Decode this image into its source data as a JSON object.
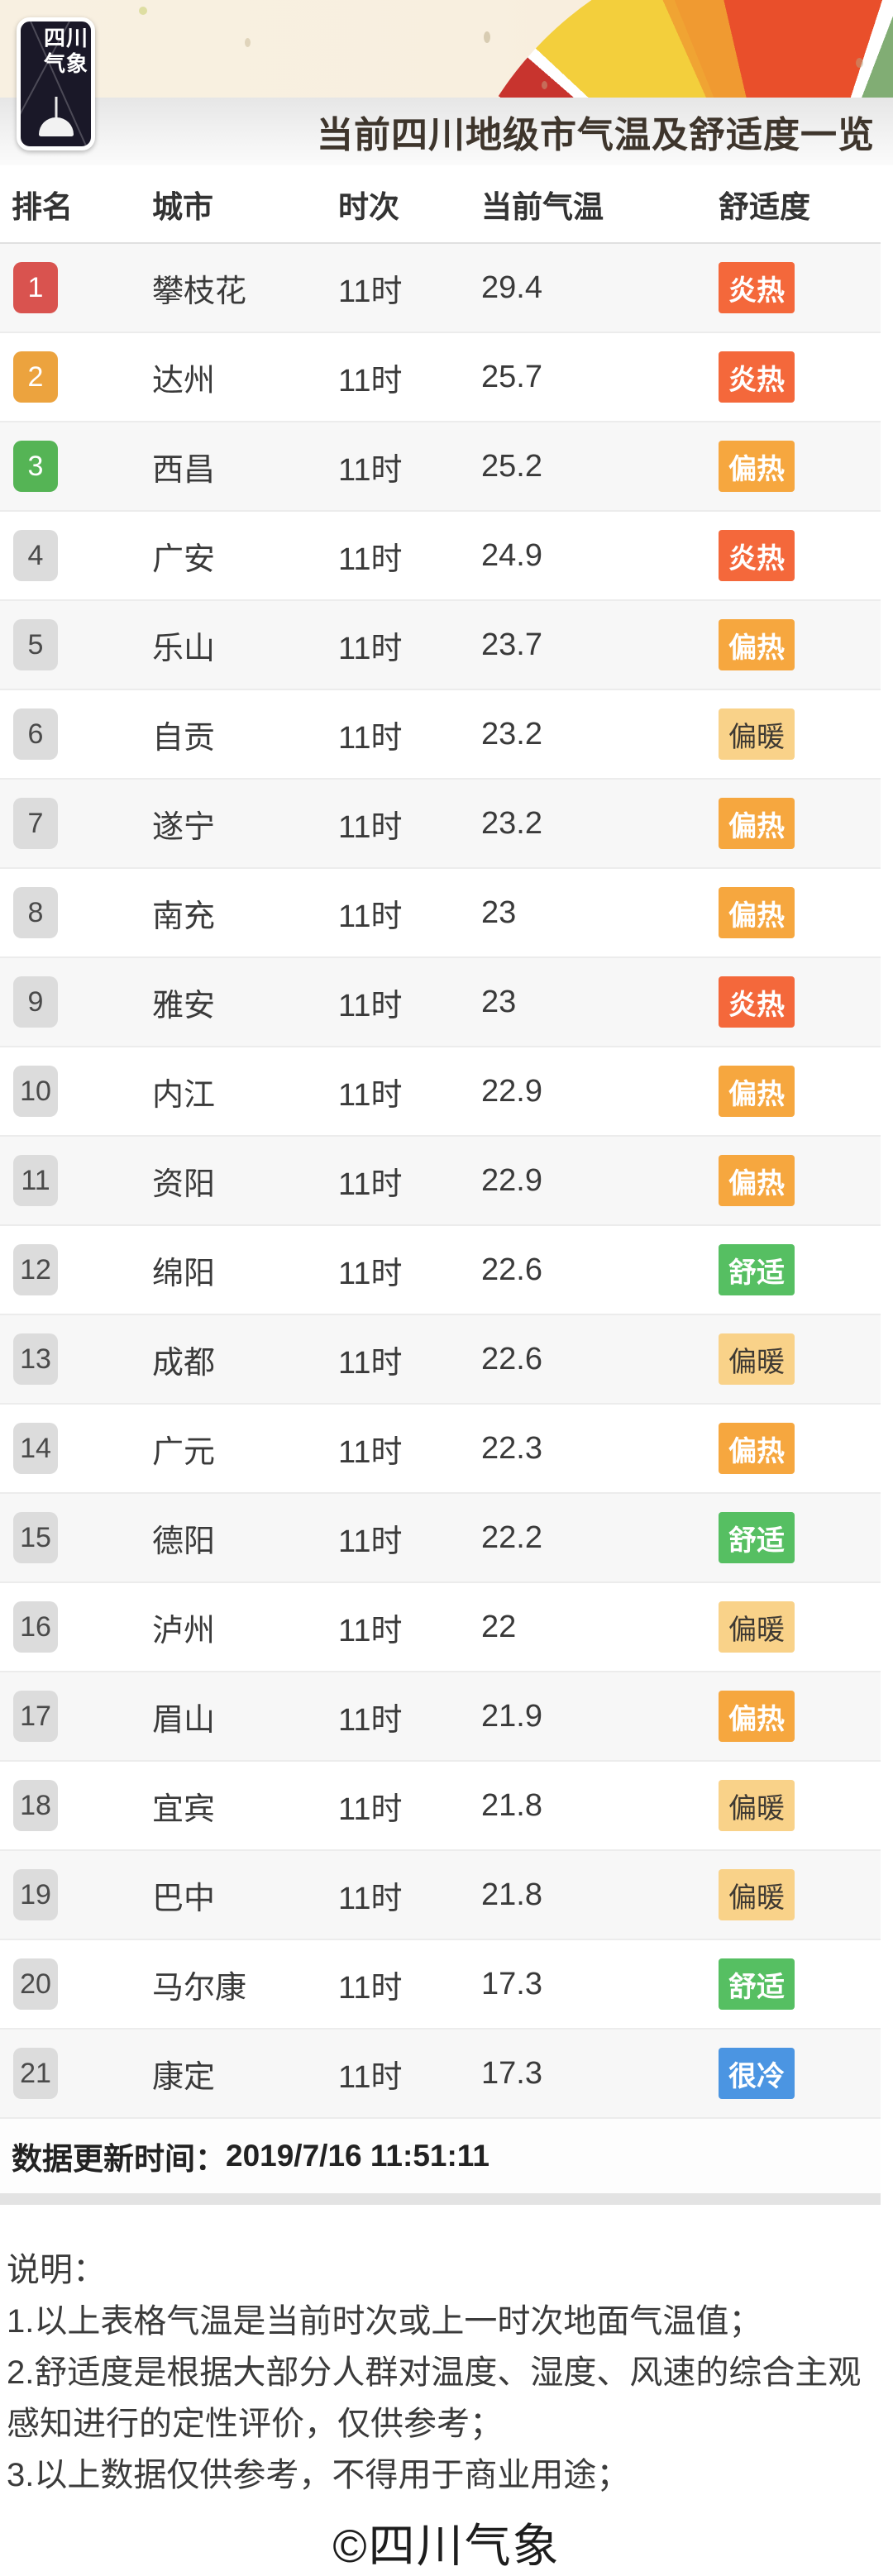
{
  "header": {
    "logo_line1": "四川",
    "logo_line2": "气象",
    "title": "当前四川地级市气温及舒适度一览"
  },
  "table": {
    "columns": [
      "排名",
      "城市",
      "时次",
      "当前气温",
      "舒适度"
    ],
    "rows": [
      {
        "rank": "1",
        "city": "攀枝花",
        "time": "11时",
        "temperature": "29.4",
        "comfort": "炎热",
        "comfort_level": "hot"
      },
      {
        "rank": "2",
        "city": "达州",
        "time": "11时",
        "temperature": "25.7",
        "comfort": "炎热",
        "comfort_level": "hot"
      },
      {
        "rank": "3",
        "city": "西昌",
        "time": "11时",
        "temperature": "25.2",
        "comfort": "偏热",
        "comfort_level": "warm_hot"
      },
      {
        "rank": "4",
        "city": "广安",
        "time": "11时",
        "temperature": "24.9",
        "comfort": "炎热",
        "comfort_level": "hot"
      },
      {
        "rank": "5",
        "city": "乐山",
        "time": "11时",
        "temperature": "23.7",
        "comfort": "偏热",
        "comfort_level": "warm_hot"
      },
      {
        "rank": "6",
        "city": "自贡",
        "time": "11时",
        "temperature": "23.2",
        "comfort": "偏暖",
        "comfort_level": "warm"
      },
      {
        "rank": "7",
        "city": "遂宁",
        "time": "11时",
        "temperature": "23.2",
        "comfort": "偏热",
        "comfort_level": "warm_hot"
      },
      {
        "rank": "8",
        "city": "南充",
        "time": "11时",
        "temperature": "23",
        "comfort": "偏热",
        "comfort_level": "warm_hot"
      },
      {
        "rank": "9",
        "city": "雅安",
        "time": "11时",
        "temperature": "23",
        "comfort": "炎热",
        "comfort_level": "hot"
      },
      {
        "rank": "10",
        "city": "内江",
        "time": "11时",
        "temperature": "22.9",
        "comfort": "偏热",
        "comfort_level": "warm_hot"
      },
      {
        "rank": "11",
        "city": "资阳",
        "time": "11时",
        "temperature": "22.9",
        "comfort": "偏热",
        "comfort_level": "warm_hot"
      },
      {
        "rank": "12",
        "city": "绵阳",
        "time": "11时",
        "temperature": "22.6",
        "comfort": "舒适",
        "comfort_level": "comfortable"
      },
      {
        "rank": "13",
        "city": "成都",
        "time": "11时",
        "temperature": "22.6",
        "comfort": "偏暖",
        "comfort_level": "warm"
      },
      {
        "rank": "14",
        "city": "广元",
        "time": "11时",
        "temperature": "22.3",
        "comfort": "偏热",
        "comfort_level": "warm_hot"
      },
      {
        "rank": "15",
        "city": "德阳",
        "time": "11时",
        "temperature": "22.2",
        "comfort": "舒适",
        "comfort_level": "comfortable"
      },
      {
        "rank": "16",
        "city": "泸州",
        "time": "11时",
        "temperature": "22",
        "comfort": "偏暖",
        "comfort_level": "warm"
      },
      {
        "rank": "17",
        "city": "眉山",
        "time": "11时",
        "temperature": "21.9",
        "comfort": "偏热",
        "comfort_level": "warm_hot"
      },
      {
        "rank": "18",
        "city": "宜宾",
        "time": "11时",
        "temperature": "21.8",
        "comfort": "偏暖",
        "comfort_level": "warm"
      },
      {
        "rank": "19",
        "city": "巴中",
        "time": "11时",
        "temperature": "21.8",
        "comfort": "偏暖",
        "comfort_level": "warm"
      },
      {
        "rank": "20",
        "city": "马尔康",
        "time": "11时",
        "temperature": "17.3",
        "comfort": "舒适",
        "comfort_level": "comfortable"
      },
      {
        "rank": "21",
        "city": "康定",
        "time": "11时",
        "temperature": "17.3",
        "comfort": "很冷",
        "comfort_level": "very_cold"
      }
    ]
  },
  "update": {
    "label": "数据更新时间：",
    "value": "2019/7/16 11:51:11"
  },
  "notes": {
    "heading": "说明：",
    "items": [
      "1.以上表格气温是当前时次或上一时次地面气温值；",
      "2.舒适度是根据大部分人群对温度、湿度、风速的综合主观感知进行的定性评价，仅供参考；",
      "3.以上数据仅供参考，不得用于商业用途；"
    ]
  },
  "copyright": "©四川气象",
  "colors": {
    "rank": {
      "1": "#d9534f",
      "2": "#eca33e",
      "3": "#55b455",
      "default": "#dcdcdc"
    },
    "rank_text_default": "#4a4a4a",
    "comfort": {
      "hot": "#f4683b",
      "warm_hot": "#f6a73f",
      "warm": "#f9d289",
      "comfortable": "#56bf62",
      "very_cold": "#4b95e2"
    },
    "comfort_text_dark": "#3f3a33",
    "header_background": "#f8efdf",
    "title_band_background": "#ececec"
  }
}
